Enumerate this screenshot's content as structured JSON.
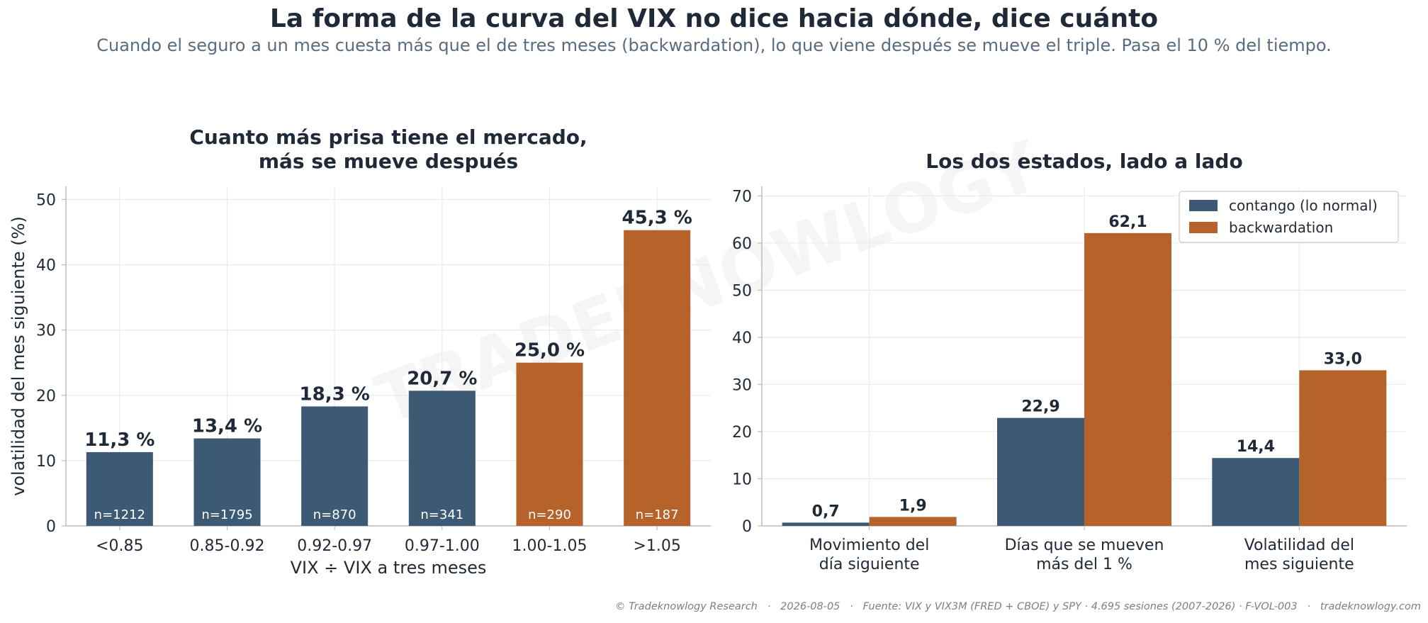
{
  "title": "La forma de la curva del VIX no dice hacia dónde, dice cuánto",
  "subtitle": "Cuando el seguro a un mes cuesta más que el de tres meses (backwardation), lo que viene después se mueve el triple. Pasa el 10 % del tiempo.",
  "watermark": "TRADEKNOWLOGY",
  "footer": "© Tradeknowlogy Research   ·   2026-08-05   ·   Fuente: VIX y VIX3M (FRED + CBOE) y SPY · 4.695 sesiones (2007-2026) · F-VOL-003   ·   tradeknowlogy.com",
  "colors": {
    "contango": "#3d5a74",
    "backwardation": "#b5622b",
    "text": "#1f2937",
    "grid": "#ebebeb",
    "axis": "#bdbdbd"
  },
  "chart_data": [
    {
      "type": "bar",
      "title": "Cuanto más prisa tiene el mercado,\nmás se mueve después",
      "xlabel": "VIX ÷ VIX a tres meses",
      "ylabel": "volatilidad del mes siguiente (%)",
      "ylim": [
        0,
        52
      ],
      "yticks": [
        0,
        10,
        20,
        30,
        40,
        50
      ],
      "grid": true,
      "categories": [
        "<0.85",
        "0.85-0.92",
        "0.92-0.97",
        "0.97-1.00",
        "1.00-1.05",
        ">1.05"
      ],
      "values": [
        11.3,
        13.4,
        18.3,
        20.7,
        25.0,
        45.3
      ],
      "value_labels": [
        "11,3 %",
        "13,4 %",
        "18,3 %",
        "20,7 %",
        "25,0 %",
        "45,3 %"
      ],
      "counts": [
        "n=1212",
        "n=1795",
        "n=870",
        "n=341",
        "n=290",
        "n=187"
      ],
      "state": [
        "contango",
        "contango",
        "contango",
        "contango",
        "backwardation",
        "backwardation"
      ]
    },
    {
      "type": "bar",
      "title": "Los dos estados, lado a lado",
      "ylim": [
        0,
        72
      ],
      "yticks": [
        0,
        10,
        20,
        30,
        40,
        50,
        60,
        70
      ],
      "grid": true,
      "legend_position": "top-right",
      "categories": [
        "Movimiento del\ndía siguiente",
        "Días que se mueven\nmás del 1 %",
        "Volatilidad del\nmes siguiente"
      ],
      "series": [
        {
          "name": "contango (lo normal)",
          "key": "contango",
          "values": [
            0.7,
            22.9,
            14.4
          ],
          "labels": [
            "0,7",
            "22,9",
            "14,4"
          ]
        },
        {
          "name": "backwardation",
          "key": "backwardation",
          "values": [
            1.9,
            62.1,
            33.0
          ],
          "labels": [
            "1,9",
            "62,1",
            "33,0"
          ]
        }
      ]
    }
  ]
}
